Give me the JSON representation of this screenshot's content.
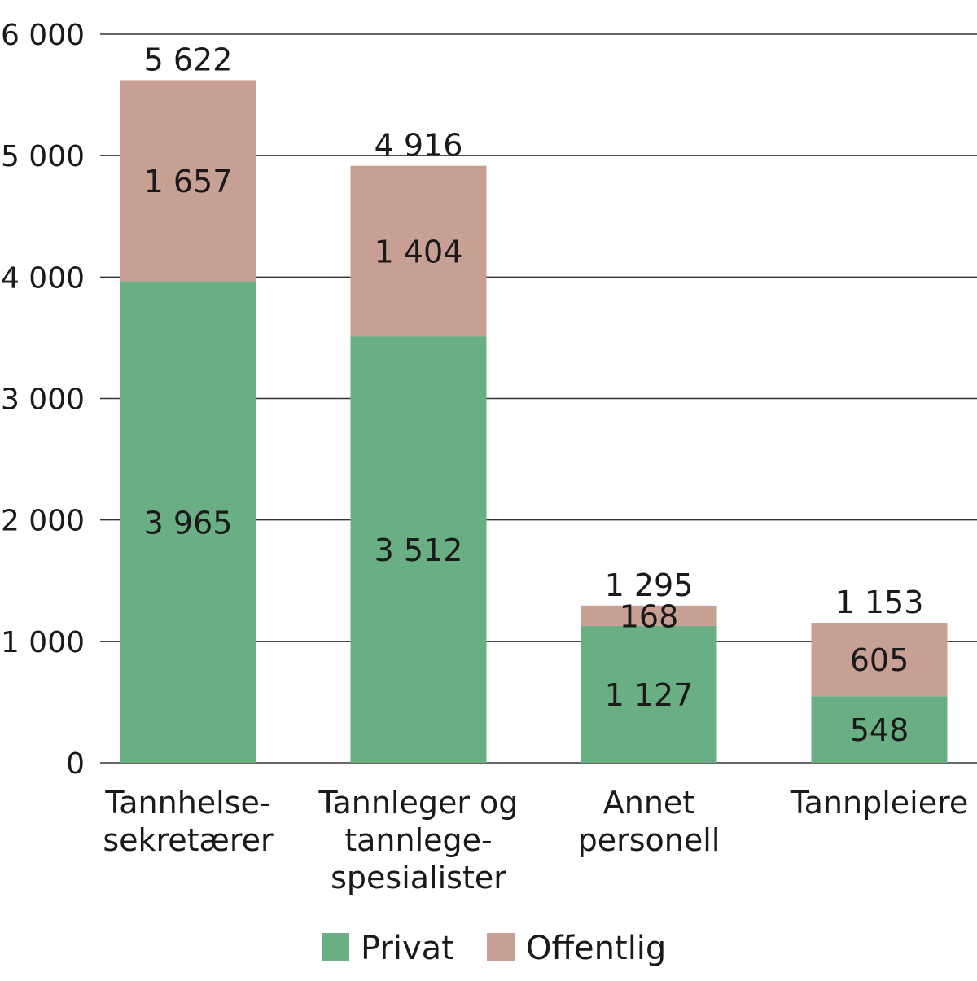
{
  "chart_data": {
    "type": "bar",
    "stacked": true,
    "categories": [
      [
        "Tannhelse-",
        "sekretærer"
      ],
      [
        "Tannleger og",
        "tannlege-",
        "spesialister"
      ],
      [
        "Annet",
        "personell"
      ],
      [
        "Tannpleiere"
      ]
    ],
    "series": [
      {
        "name": "Privat",
        "color": "#6aae84",
        "values": [
          3965,
          3512,
          1127,
          548
        ],
        "labels": [
          "3 965",
          "3 512",
          "1 127",
          "548"
        ]
      },
      {
        "name": "Offentlig",
        "color": "#c79f93",
        "values": [
          1657,
          1404,
          168,
          605
        ],
        "labels": [
          "1 657",
          "1 404",
          "168",
          "605"
        ]
      }
    ],
    "totals": [
      5622,
      4916,
      1295,
      1153
    ],
    "total_labels": [
      "5 622",
      "4 916",
      "1 295",
      "1 153"
    ],
    "ylim": [
      0,
      6000
    ],
    "yticks": [
      0,
      1000,
      2000,
      3000,
      4000,
      5000,
      6000
    ],
    "ytick_labels": [
      "0",
      "1 000",
      "2 000",
      "3 000",
      "4 000",
      "5 000",
      "6 000"
    ],
    "grid": true,
    "legend_position": "bottom"
  }
}
